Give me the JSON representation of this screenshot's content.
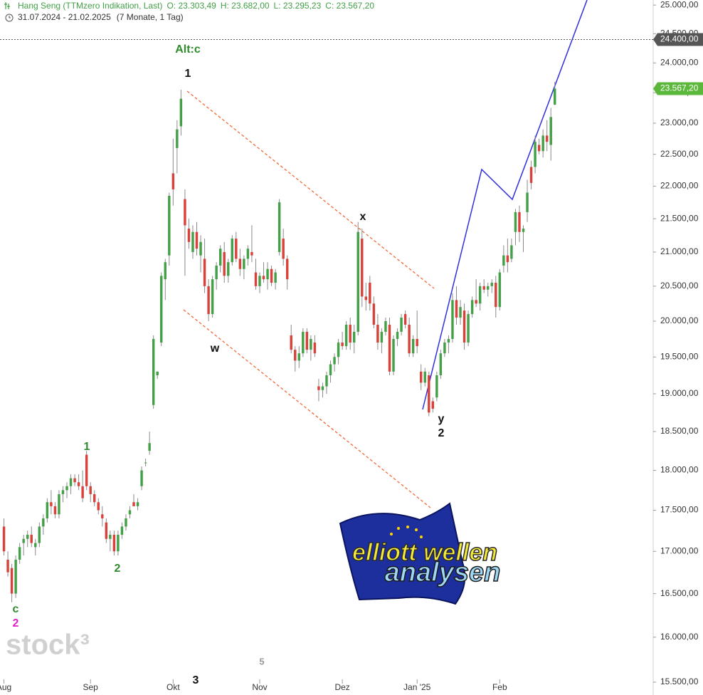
{
  "chart_data": {
    "type": "candlestick",
    "header": {
      "title": "Hang Seng (TTMzero Indikation, Last)",
      "open": "O: 23.303,49",
      "high": "H: 23.682,00",
      "low": "L: 23.295,23",
      "close": "C: 23.567,20",
      "period": "31.07.2024 - 21.02.2025",
      "span": "(7 Monate, 1 Tag)"
    },
    "log_scale": true,
    "grid": false,
    "up_color": "#43a047",
    "down_color": "#d9413b",
    "wick_color": "#8a8a8a",
    "xlim": [
      -1,
      165
    ],
    "ylim": [
      15360,
      25090
    ],
    "yticks": [
      {
        "value": 15500,
        "label": "15.500,00"
      },
      {
        "value": 16000,
        "label": "16.000,00"
      },
      {
        "value": 16500,
        "label": "16.500,00"
      },
      {
        "value": 17000,
        "label": "17.000,00"
      },
      {
        "value": 17500,
        "label": "17.500,00"
      },
      {
        "value": 18000,
        "label": "18.000,00"
      },
      {
        "value": 18500,
        "label": "18.500,00"
      },
      {
        "value": 19000,
        "label": "19.000,00"
      },
      {
        "value": 19500,
        "label": "19.500,00"
      },
      {
        "value": 20000,
        "label": "20.000,00"
      },
      {
        "value": 20500,
        "label": "20.500,00"
      },
      {
        "value": 21000,
        "label": "21.000,00"
      },
      {
        "value": 21500,
        "label": "21.500,00"
      },
      {
        "value": 22000,
        "label": "22.000,00"
      },
      {
        "value": 22500,
        "label": "22.500,00"
      },
      {
        "value": 23000,
        "label": "23.000,00"
      },
      {
        "value": 23500,
        "label": "23.500,00"
      },
      {
        "value": 24000,
        "label": "24.000,00"
      },
      {
        "value": 24500,
        "label": "24.500,00"
      },
      {
        "value": 25000,
        "label": "25.000,00"
      }
    ],
    "xticks": [
      {
        "value": 0,
        "label": "Aug"
      },
      {
        "value": 22,
        "label": "Sep"
      },
      {
        "value": 43,
        "label": "Okt"
      },
      {
        "value": 65,
        "label": "Nov"
      },
      {
        "value": 86,
        "label": "Dez"
      },
      {
        "value": 105,
        "label": "Jan '25"
      },
      {
        "value": 126,
        "label": "Feb"
      }
    ],
    "markers": [
      {
        "value": 24400,
        "label": "24.400,00",
        "color": "#555555",
        "dashed": true
      },
      {
        "value": 23567.2,
        "label": "23.567,20",
        "color": "#5cb83a",
        "dashed": false
      }
    ],
    "ohlc": [
      [
        17300,
        17400,
        16950,
        17000
      ],
      [
        16900,
        17000,
        16700,
        16750
      ],
      [
        16800,
        16850,
        16400,
        16500
      ],
      [
        16500,
        16950,
        16450,
        16900
      ],
      [
        16900,
        17100,
        16850,
        17050
      ],
      [
        17100,
        17200,
        16950,
        17150
      ],
      [
        17150,
        17250,
        17050,
        17200
      ],
      [
        17200,
        17300,
        17050,
        17100
      ],
      [
        17050,
        17150,
        16950,
        17100
      ],
      [
        17100,
        17350,
        17050,
        17300
      ],
      [
        17300,
        17450,
        17200,
        17400
      ],
      [
        17400,
        17650,
        17350,
        17600
      ],
      [
        17600,
        17750,
        17450,
        17550
      ],
      [
        17550,
        17600,
        17400,
        17450
      ],
      [
        17450,
        17750,
        17400,
        17700
      ],
      [
        17700,
        17800,
        17600,
        17750
      ],
      [
        17750,
        17850,
        17650,
        17800
      ],
      [
        17800,
        17950,
        17700,
        17900
      ],
      [
        17900,
        17950,
        17800,
        17850
      ],
      [
        17850,
        17950,
        17750,
        17800
      ],
      [
        17800,
        18000,
        17600,
        17650
      ],
      [
        18200,
        18250,
        17750,
        17800
      ],
      [
        17800,
        17850,
        17600,
        17700
      ],
      [
        17700,
        17750,
        17550,
        17600
      ],
      [
        17600,
        17650,
        17450,
        17500
      ],
      [
        17450,
        17550,
        17300,
        17400
      ],
      [
        17350,
        17400,
        17100,
        17150
      ],
      [
        17150,
        17250,
        17000,
        17200
      ],
      [
        17200,
        17250,
        16950,
        17000
      ],
      [
        17000,
        17250,
        16950,
        17200
      ],
      [
        17200,
        17350,
        17150,
        17300
      ],
      [
        17300,
        17450,
        17250,
        17400
      ],
      [
        17450,
        17550,
        17400,
        17500
      ],
      [
        17600,
        17700,
        17550,
        17550
      ],
      [
        17550,
        17650,
        17500,
        17600
      ],
      [
        17800,
        18050,
        17750,
        18000
      ],
      [
        18100,
        18150,
        18050,
        18100
      ],
      [
        18250,
        18500,
        18200,
        18350
      ],
      [
        18850,
        19800,
        18800,
        19750
      ],
      [
        19250,
        19300,
        19200,
        19300
      ],
      [
        19700,
        20700,
        19650,
        20650
      ],
      [
        20600,
        20900,
        20300,
        20850
      ],
      [
        20950,
        21900,
        20800,
        21850
      ],
      [
        22200,
        22750,
        21700,
        21950
      ],
      [
        22600,
        23050,
        22200,
        22900
      ],
      [
        22950,
        23550,
        22800,
        23400
      ],
      [
        21800,
        21950,
        20650,
        21400
      ],
      [
        21350,
        21500,
        21050,
        21150
      ],
      [
        21000,
        21400,
        20900,
        21300
      ],
      [
        21300,
        21450,
        20950,
        21050
      ],
      [
        20950,
        21250,
        20700,
        21150
      ],
      [
        20900,
        21200,
        20400,
        20500
      ],
      [
        20500,
        20600,
        20000,
        20100
      ],
      [
        20100,
        20650,
        20050,
        20600
      ],
      [
        20600,
        20850,
        20450,
        20800
      ],
      [
        20800,
        21100,
        20700,
        21050
      ],
      [
        21000,
        21150,
        20550,
        20650
      ],
      [
        20650,
        20900,
        20550,
        20850
      ],
      [
        20850,
        21250,
        20800,
        21200
      ],
      [
        21200,
        21300,
        20850,
        20900
      ],
      [
        20900,
        21050,
        20650,
        20750
      ],
      [
        20750,
        20950,
        20600,
        20900
      ],
      [
        20900,
        21100,
        20800,
        21050
      ],
      [
        21000,
        21400,
        20850,
        20950
      ],
      [
        20700,
        20900,
        20450,
        20500
      ],
      [
        20500,
        20700,
        20400,
        20650
      ],
      [
        20650,
        20850,
        20550,
        20600
      ],
      [
        20600,
        20850,
        20450,
        20750
      ],
      [
        20750,
        20800,
        20500,
        20550
      ],
      [
        20550,
        20750,
        20450,
        20700
      ],
      [
        21000,
        21800,
        20950,
        21750
      ],
      [
        21200,
        21350,
        20800,
        20900
      ],
      [
        20900,
        20950,
        20450,
        20600
      ],
      [
        19800,
        19950,
        19550,
        19600
      ],
      [
        19600,
        19650,
        19300,
        19450
      ],
      [
        19450,
        19650,
        19350,
        19550
      ],
      [
        19550,
        19900,
        19500,
        19850
      ],
      [
        19850,
        19900,
        19550,
        19600
      ],
      [
        19600,
        19800,
        19450,
        19750
      ],
      [
        19700,
        19800,
        19500,
        19550
      ],
      [
        19100,
        19200,
        18900,
        19050
      ],
      [
        19050,
        19150,
        18950,
        19100
      ],
      [
        19100,
        19300,
        19000,
        19250
      ],
      [
        19250,
        19450,
        19150,
        19400
      ],
      [
        19400,
        19550,
        19300,
        19500
      ],
      [
        19500,
        19750,
        19400,
        19700
      ],
      [
        19700,
        19850,
        19600,
        19650
      ],
      [
        19650,
        20000,
        19600,
        19950
      ],
      [
        19950,
        20050,
        19600,
        19700
      ],
      [
        19700,
        19950,
        19550,
        19850
      ],
      [
        19850,
        21450,
        19800,
        21300
      ],
      [
        21200,
        21350,
        20200,
        20350
      ],
      [
        20350,
        20550,
        20150,
        20300
      ],
      [
        20550,
        20650,
        20150,
        20250
      ],
      [
        20250,
        20350,
        19900,
        19950
      ],
      [
        19950,
        20100,
        19600,
        19700
      ],
      [
        19700,
        19900,
        19550,
        19850
      ],
      [
        19850,
        20050,
        19800,
        20000
      ],
      [
        19950,
        20050,
        19250,
        19300
      ],
      [
        19300,
        19800,
        19250,
        19750
      ],
      [
        19750,
        19900,
        19650,
        19850
      ],
      [
        19850,
        20100,
        19800,
        20050
      ],
      [
        20100,
        20150,
        19900,
        19950
      ],
      [
        19950,
        20050,
        19500,
        19550
      ],
      [
        19550,
        19800,
        19500,
        19750
      ],
      [
        19750,
        20150,
        19550,
        19650
      ],
      [
        19300,
        19400,
        19050,
        19150
      ],
      [
        19150,
        19350,
        19100,
        19300
      ],
      [
        19250,
        19300,
        18700,
        18750
      ],
      [
        18900,
        18950,
        18750,
        18800
      ],
      [
        18950,
        19300,
        18900,
        19250
      ],
      [
        19250,
        19600,
        19200,
        19550
      ],
      [
        19550,
        19750,
        19500,
        19700
      ],
      [
        19700,
        19800,
        19550,
        19750
      ],
      [
        19750,
        20400,
        19700,
        20300
      ],
      [
        20300,
        20500,
        19950,
        20050
      ],
      [
        20050,
        20300,
        19950,
        20200
      ],
      [
        20150,
        20250,
        19600,
        19700
      ],
      [
        19700,
        20150,
        19650,
        20100
      ],
      [
        20100,
        20350,
        20050,
        20300
      ],
      [
        20300,
        20600,
        20200,
        20250
      ],
      [
        20250,
        20550,
        20150,
        20500
      ],
      [
        20500,
        20600,
        20400,
        20450
      ],
      [
        20450,
        20550,
        20350,
        20500
      ],
      [
        20500,
        20600,
        20400,
        20550
      ],
      [
        20550,
        20650,
        20050,
        20200
      ],
      [
        20200,
        20750,
        20150,
        20700
      ],
      [
        20800,
        21100,
        20700,
        20950
      ],
      [
        20950,
        21200,
        20700,
        20850
      ],
      [
        20900,
        21200,
        20850,
        21100
      ],
      [
        21300,
        21650,
        21100,
        21600
      ],
      [
        21600,
        21700,
        21150,
        21300
      ],
      [
        21300,
        21400,
        21000,
        21350
      ],
      [
        21600,
        22100,
        21450,
        21900
      ],
      [
        22300,
        22400,
        21950,
        22050
      ],
      [
        22300,
        22800,
        22200,
        22700
      ],
      [
        22650,
        22750,
        22500,
        22550
      ],
      [
        22550,
        22900,
        22450,
        22800
      ],
      [
        22800,
        23050,
        22550,
        22700
      ],
      [
        22650,
        23250,
        22400,
        23100
      ],
      [
        23303.49,
        23682,
        23295.23,
        23567.2
      ]
    ],
    "annotations": {
      "alt_c": "Alt:c",
      "peak_1": "1",
      "x": "x",
      "w": "w",
      "y": "y",
      "y_2": "2",
      "sep_1": "1",
      "sep_2": "2",
      "aug_c": "c",
      "aug_2": "2",
      "bottom_3": "3",
      "bottom_5": "5"
    },
    "logo": {
      "line1": "elliott wellen",
      "line2": "analysen"
    },
    "watermark": "stock³"
  }
}
